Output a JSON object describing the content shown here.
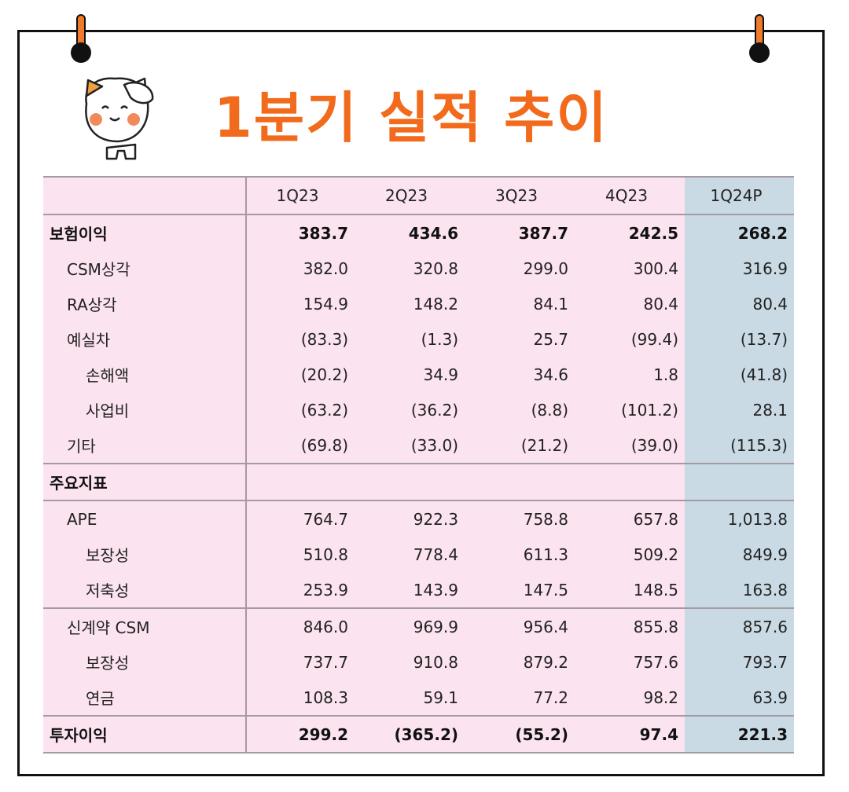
{
  "title": "1분기 실적 추이",
  "colors": {
    "title": "#f26a1b",
    "table_bg": "#fbe3f0",
    "highlight_bg": "#c9dae4"
  },
  "mascot": {
    "icon": "cat-saluting-icon"
  },
  "table": {
    "columns": [
      "",
      "1Q23",
      "2Q23",
      "3Q23",
      "4Q23",
      "1Q24P"
    ],
    "highlight_column": "1Q24P",
    "rows": [
      {
        "label": "보험이익",
        "level": 0,
        "bold": true,
        "values": [
          "383.7",
          "434.6",
          "387.7",
          "242.5",
          "268.2"
        ]
      },
      {
        "label": "CSM상각",
        "level": 1,
        "bold": false,
        "values": [
          "382.0",
          "320.8",
          "299.0",
          "300.4",
          "316.9"
        ]
      },
      {
        "label": "RA상각",
        "level": 1,
        "bold": false,
        "values": [
          "154.9",
          "148.2",
          "84.1",
          "80.4",
          "80.4"
        ]
      },
      {
        "label": "예실차",
        "level": 1,
        "bold": false,
        "values": [
          "(83.3)",
          "(1.3)",
          "25.7",
          "(99.4)",
          "(13.7)"
        ]
      },
      {
        "label": "손해액",
        "level": 2,
        "bold": false,
        "values": [
          "(20.2)",
          "34.9",
          "34.6",
          "1.8",
          "(41.8)"
        ]
      },
      {
        "label": "사업비",
        "level": 2,
        "bold": false,
        "values": [
          "(63.2)",
          "(36.2)",
          "(8.8)",
          "(101.2)",
          "28.1"
        ]
      },
      {
        "label": "기타",
        "level": 1,
        "bold": false,
        "values": [
          "(69.8)",
          "(33.0)",
          "(21.2)",
          "(39.0)",
          "(115.3)"
        ]
      },
      {
        "label": "주요지표",
        "level": 0,
        "bold": true,
        "values": [
          "",
          "",
          "",
          "",
          ""
        ]
      },
      {
        "label": "APE",
        "level": 1,
        "bold": false,
        "values": [
          "764.7",
          "922.3",
          "758.8",
          "657.8",
          "1,013.8"
        ]
      },
      {
        "label": "보장성",
        "level": 2,
        "bold": false,
        "values": [
          "510.8",
          "778.4",
          "611.3",
          "509.2",
          "849.9"
        ]
      },
      {
        "label": "저축성",
        "level": 2,
        "bold": false,
        "values": [
          "253.9",
          "143.9",
          "147.5",
          "148.5",
          "163.8"
        ]
      },
      {
        "label": "신계약 CSM",
        "level": 1,
        "bold": false,
        "values": [
          "846.0",
          "969.9",
          "956.4",
          "855.8",
          "857.6"
        ]
      },
      {
        "label": "보장성",
        "level": 2,
        "bold": false,
        "values": [
          "737.7",
          "910.8",
          "879.2",
          "757.6",
          "793.7"
        ]
      },
      {
        "label": "연금",
        "level": 2,
        "bold": false,
        "values": [
          "108.3",
          "59.1",
          "77.2",
          "98.2",
          "63.9"
        ]
      },
      {
        "label": "투자이익",
        "level": 0,
        "bold": true,
        "values": [
          "299.2",
          "(365.2)",
          "(55.2)",
          "97.4",
          "221.3"
        ]
      }
    ]
  }
}
